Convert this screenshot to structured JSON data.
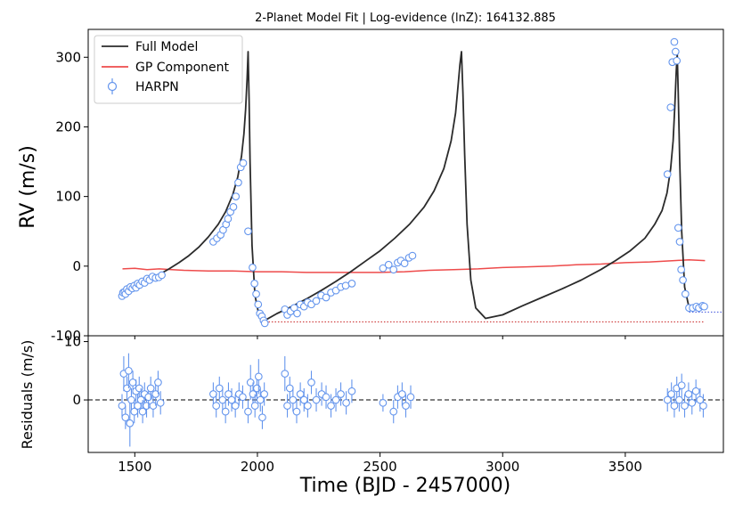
{
  "chart_data": {
    "type": "line",
    "title": "2-Planet Model Fit | Log-evidence (lnZ): 164132.885",
    "xlabel": "Time (BJD - 2457000)",
    "top_panel": {
      "ylabel": "RV (m/s)",
      "ylim": [
        -100,
        340
      ],
      "yticks": [
        -100,
        0,
        100,
        200,
        300
      ],
      "legend_position": "upper-left",
      "series": [
        {
          "name": "Full Model",
          "color": "#2b2b2b",
          "x": [
            1450,
            1480,
            1520,
            1560,
            1600,
            1640,
            1680,
            1720,
            1760,
            1800,
            1840,
            1870,
            1900,
            1920,
            1935,
            1945,
            1952,
            1958,
            1962,
            1966,
            1970,
            1978,
            1990,
            2005,
            2030,
            2080,
            2140,
            2200,
            2260,
            2320,
            2380,
            2440,
            2500,
            2560,
            2620,
            2680,
            2720,
            2760,
            2790,
            2808,
            2818,
            2826,
            2832,
            2838,
            2845,
            2855,
            2870,
            2890,
            2930,
            3000,
            3080,
            3160,
            3240,
            3320,
            3400,
            3460,
            3520,
            3580,
            3620,
            3650,
            3670,
            3685,
            3695,
            3702,
            3708,
            3712,
            3716,
            3722,
            3730,
            3742,
            3760,
            3790,
            3820
          ],
          "y": [
            -40,
            -35,
            -27,
            -20,
            -12,
            -4,
            5,
            15,
            27,
            42,
            60,
            78,
            103,
            128,
            158,
            190,
            225,
            270,
            308,
            240,
            150,
            30,
            -42,
            -68,
            -78,
            -68,
            -58,
            -47,
            -35,
            -22,
            -8,
            7,
            22,
            40,
            60,
            85,
            108,
            140,
            180,
            220,
            258,
            290,
            308,
            250,
            160,
            60,
            -20,
            -60,
            -75,
            -70,
            -57,
            -45,
            -33,
            -20,
            -5,
            8,
            22,
            40,
            60,
            80,
            105,
            140,
            180,
            230,
            280,
            305,
            250,
            150,
            50,
            -30,
            -60,
            -58,
            -55
          ]
        },
        {
          "name": "GP Component",
          "color": "#ee4b4b",
          "x": [
            1450,
            1500,
            1550,
            1600,
            1650,
            1700,
            1800,
            1900,
            2000,
            2100,
            2200,
            2300,
            2400,
            2500,
            2600,
            2700,
            2800,
            2900,
            3000,
            3100,
            3200,
            3300,
            3400,
            3500,
            3600,
            3700,
            3760,
            3825
          ],
          "y": [
            -4,
            -3,
            -5,
            -4,
            -5,
            -6,
            -7,
            -7,
            -8,
            -8,
            -9,
            -9,
            -9,
            -9,
            -8,
            -6,
            -5,
            -4,
            -2,
            -1,
            0,
            2,
            3,
            5,
            6,
            8,
            9,
            8
          ]
        },
        {
          "name": "HARPN",
          "color": "#6495ed",
          "marker": "open-circle-with-errorbars",
          "x": [
            1448,
            1452,
            1458,
            1462,
            1468,
            1475,
            1482,
            1490,
            1498,
            1505,
            1512,
            1520,
            1530,
            1540,
            1550,
            1560,
            1572,
            1585,
            1598,
            1610,
            1820,
            1835,
            1850,
            1860,
            1872,
            1880,
            1890,
            1902,
            1912,
            1922,
            1932,
            1942,
            1962,
            1980,
            1988,
            1995,
            2003,
            2010,
            2018,
            2025,
            2030,
            2112,
            2122,
            2135,
            2150,
            2162,
            2175,
            2190,
            2205,
            2220,
            2240,
            2260,
            2280,
            2300,
            2320,
            2340,
            2360,
            2385,
            2512,
            2535,
            2555,
            2572,
            2585,
            2600,
            2618,
            2632,
            3672,
            3685,
            3692,
            3700,
            3705,
            3710,
            3716,
            3722,
            3728,
            3735,
            3745,
            3760,
            3775,
            3790,
            3800,
            3815,
            3822
          ],
          "y": [
            -43,
            -38,
            -37,
            -40,
            -33,
            -36,
            -30,
            -32,
            -28,
            -31,
            -25,
            -27,
            -22,
            -24,
            -18,
            -20,
            -15,
            -17,
            -16,
            -13,
            35,
            40,
            45,
            52,
            60,
            68,
            78,
            85,
            100,
            120,
            142,
            148,
            50,
            -2,
            -25,
            -40,
            -55,
            -68,
            -72,
            -78,
            -82,
            -62,
            -70,
            -65,
            -60,
            -68,
            -55,
            -58,
            -52,
            -55,
            -50,
            -42,
            -45,
            -38,
            -35,
            -30,
            -28,
            -25,
            -3,
            2,
            -5,
            5,
            8,
            4,
            12,
            15,
            132,
            228,
            293,
            322,
            308,
            295,
            55,
            35,
            -5,
            -20,
            -40,
            -60,
            -60,
            -58,
            -60,
            -57,
            -58
          ]
        }
      ],
      "reference_lines": [
        {
          "color": "#c81e1e",
          "style": "dotted",
          "y": -80,
          "x_start": 2020,
          "x_end": 3825
        },
        {
          "color": "#3c50dc",
          "style": "dotted",
          "y": -66,
          "x_start": 3760,
          "x_end": 3930
        }
      ]
    },
    "bottom_panel": {
      "ylabel": "Residuals (m/s)",
      "ylim": [
        -9,
        11
      ],
      "yticks": [
        0,
        10
      ],
      "zero_line": {
        "y": 0,
        "style": "dashed",
        "color": "#000000"
      },
      "series": [
        {
          "name": "HARPN",
          "color": "#6495ed",
          "x": [
            1448,
            1455,
            1462,
            1468,
            1475,
            1480,
            1486,
            1492,
            1498,
            1505,
            1512,
            1518,
            1525,
            1532,
            1540,
            1548,
            1556,
            1565,
            1575,
            1585,
            1595,
            1605,
            1820,
            1832,
            1845,
            1858,
            1870,
            1882,
            1895,
            1910,
            1925,
            1940,
            1962,
            1972,
            1982,
            1990,
            1998,
            2005,
            2012,
            2020,
            2028,
            2112,
            2122,
            2132,
            2145,
            2160,
            2175,
            2190,
            2205,
            2220,
            2240,
            2262,
            2280,
            2300,
            2320,
            2340,
            2362,
            2385,
            2512,
            2555,
            2572,
            2590,
            2605,
            2625,
            3672,
            3688,
            3700,
            3710,
            3720,
            3730,
            3742,
            3758,
            3772,
            3788,
            3805,
            3818
          ],
          "y": [
            -1,
            4.5,
            -3,
            2,
            5,
            -4,
            0,
            3,
            -2,
            1.5,
            -1,
            2,
            0,
            -2,
            1,
            -1,
            0.5,
            2,
            -1,
            1,
            3,
            -0.5,
            1,
            -1,
            2,
            0,
            -2,
            1,
            0,
            -1,
            1,
            0.5,
            -2,
            3,
            1,
            -1,
            2,
            4,
            0,
            -3,
            1,
            4.5,
            -1,
            2,
            0,
            -2,
            1,
            0,
            -1,
            3,
            0,
            1,
            0.5,
            -1,
            0,
            1,
            -0.5,
            1.5,
            -0.5,
            -2,
            0.5,
            1,
            -1,
            0.5,
            0,
            1,
            -1,
            2,
            0,
            2.5,
            -1,
            1,
            -0.5,
            1.5,
            0,
            -1
          ],
          "err": [
            2,
            3,
            2,
            2,
            3,
            4,
            2,
            2,
            2,
            2,
            2,
            2,
            2,
            2,
            2,
            2,
            2,
            2,
            2,
            2,
            2,
            2,
            2,
            2,
            2,
            2,
            2,
            2,
            2,
            2,
            2,
            2,
            2,
            3,
            2,
            2,
            2,
            3,
            2,
            2,
            2,
            3,
            2,
            2,
            2,
            2,
            2,
            2,
            2,
            2,
            2,
            2,
            2,
            2,
            2,
            2,
            2,
            2,
            1.5,
            2,
            2,
            2,
            2,
            2,
            2,
            2,
            2,
            2,
            2,
            2,
            2,
            2,
            2,
            2,
            2,
            2
          ]
        }
      ]
    },
    "xlim": [
      1310,
      3900
    ],
    "xticks": [
      1500,
      2000,
      2500,
      3000,
      3500
    ]
  }
}
